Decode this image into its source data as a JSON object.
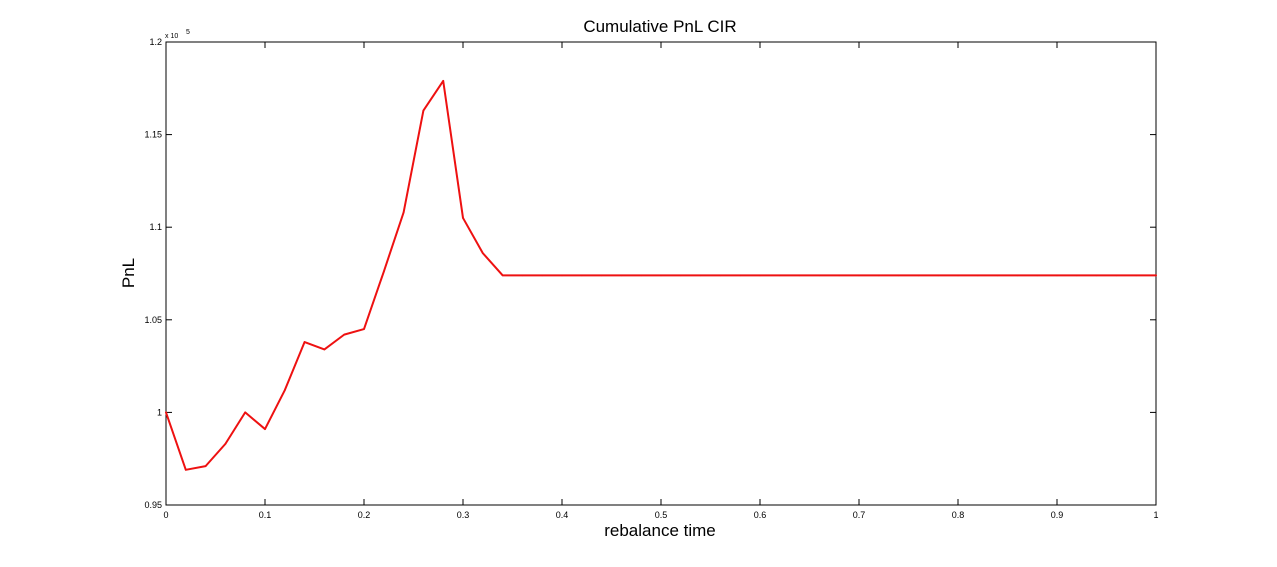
{
  "chart_data": {
    "type": "line",
    "title": "Cumulative PnL CIR",
    "xlabel": "rebalance time",
    "ylabel": "PnL",
    "y_exponent_label": "x 10",
    "y_exponent_power": "5",
    "xlim": [
      0,
      1
    ],
    "ylim": [
      0.95,
      1.2
    ],
    "grid": false,
    "x_ticks": [
      0,
      0.1,
      0.2,
      0.3,
      0.4,
      0.5,
      0.6,
      0.7,
      0.8,
      0.9,
      1
    ],
    "x_tick_labels": [
      "0",
      "0.1",
      "0.2",
      "0.3",
      "0.4",
      "0.5",
      "0.6",
      "0.7",
      "0.8",
      "0.9",
      "1"
    ],
    "y_ticks": [
      0.95,
      1.0,
      1.05,
      1.1,
      1.15,
      1.2
    ],
    "y_tick_labels": [
      "0.95",
      "1",
      "1.05",
      "1.1",
      "1.15",
      "1.2"
    ],
    "series": [
      {
        "color": "#ee1111",
        "x": [
          0,
          0.02,
          0.04,
          0.06,
          0.08,
          0.1,
          0.12,
          0.14,
          0.16,
          0.18,
          0.2,
          0.22,
          0.24,
          0.26,
          0.28,
          0.3,
          0.32,
          0.34,
          0.36,
          0.38,
          0.4,
          0.42,
          0.44,
          0.46,
          0.48,
          0.5,
          0.52,
          0.54,
          0.56,
          0.58,
          0.6,
          0.62,
          0.64,
          0.66,
          0.68,
          0.7,
          0.72,
          0.74,
          0.76,
          0.78,
          0.8,
          0.82,
          0.84,
          0.86,
          0.88,
          0.9,
          0.92,
          0.94,
          0.96,
          0.98,
          1.0
        ],
        "values": [
          1.0,
          0.969,
          0.971,
          0.983,
          1.0,
          0.991,
          1.012,
          1.038,
          1.034,
          1.042,
          1.045,
          1.076,
          1.108,
          1.163,
          1.179,
          1.105,
          1.086,
          1.074,
          1.074,
          1.074,
          1.074,
          1.074,
          1.074,
          1.074,
          1.074,
          1.074,
          1.074,
          1.074,
          1.074,
          1.074,
          1.074,
          1.074,
          1.074,
          1.074,
          1.074,
          1.074,
          1.074,
          1.074,
          1.074,
          1.074,
          1.074,
          1.074,
          1.074,
          1.074,
          1.074,
          1.074,
          1.074,
          1.074,
          1.074,
          1.074,
          1.074
        ]
      }
    ]
  }
}
